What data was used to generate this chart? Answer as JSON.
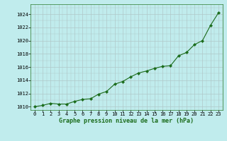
{
  "hours": [
    0,
    1,
    2,
    3,
    4,
    5,
    6,
    7,
    8,
    9,
    10,
    11,
    12,
    13,
    14,
    15,
    16,
    17,
    18,
    19,
    20,
    21,
    22,
    23
  ],
  "pressure": [
    1010.0,
    1010.2,
    1010.5,
    1010.4,
    1010.4,
    1010.8,
    1011.1,
    1011.2,
    1011.9,
    1012.3,
    1013.4,
    1013.8,
    1014.5,
    1015.1,
    1015.4,
    1015.8,
    1016.1,
    1016.2,
    1017.7,
    1018.2,
    1019.4,
    1020.0,
    1022.3,
    1024.2
  ],
  "line_color": "#1a6b1a",
  "marker_color": "#1a6b1a",
  "bg_color": "#c0eced",
  "grid_color": "#b0c8c8",
  "xlabel": "Graphe pression niveau de la mer (hPa)",
  "ylim": [
    1009.5,
    1025.5
  ],
  "yticks": [
    1010,
    1012,
    1014,
    1016,
    1018,
    1020,
    1022,
    1024
  ],
  "xticks": [
    0,
    1,
    2,
    3,
    4,
    5,
    6,
    7,
    8,
    9,
    10,
    11,
    12,
    13,
    14,
    15,
    16,
    17,
    18,
    19,
    20,
    21,
    22,
    23
  ],
  "tick_fontsize": 5.0,
  "xlabel_fontsize": 6.0
}
